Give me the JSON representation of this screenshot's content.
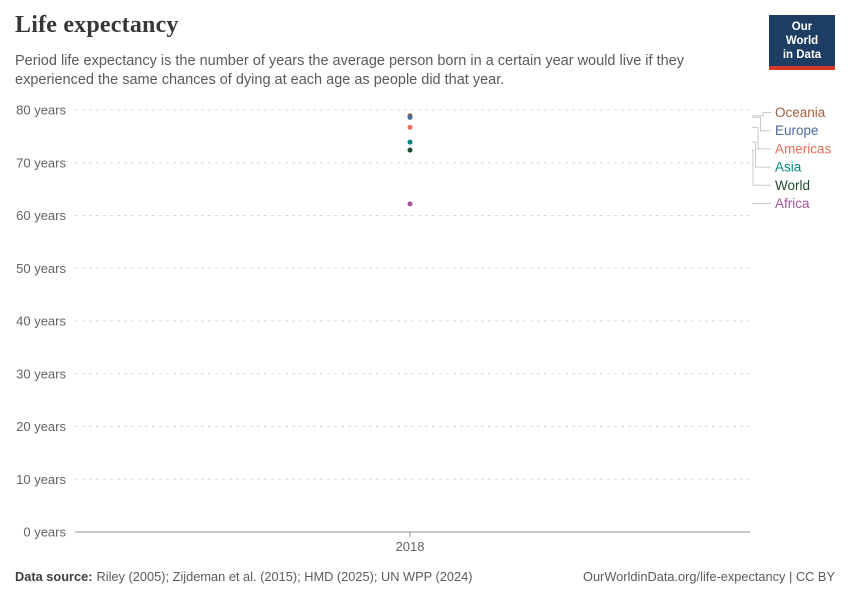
{
  "header": {
    "title": "Life expectancy",
    "subtitle": "Period life expectancy is the number of years the average person born in a certain year would live if they experienced the same chances of dying at each age as people did that year.",
    "logo": {
      "line1": "Our World",
      "line2": "in Data"
    }
  },
  "chart_data": {
    "type": "scatter",
    "title": "Life expectancy",
    "x": [
      2018
    ],
    "xtick_labels": [
      "2018"
    ],
    "series": [
      {
        "name": "Oceania",
        "color": "#a0603f",
        "values": [
          78.9
        ]
      },
      {
        "name": "Europe",
        "color": "#4c6a9c",
        "values": [
          78.6
        ]
      },
      {
        "name": "Americas",
        "color": "#e56e5a",
        "values": [
          76.7
        ]
      },
      {
        "name": "Asia",
        "color": "#00847e",
        "values": [
          73.9
        ]
      },
      {
        "name": "World",
        "color": "#1d4a2f",
        "values": [
          72.4
        ]
      },
      {
        "name": "Africa",
        "color": "#a2559c",
        "values": [
          62.2
        ]
      }
    ],
    "ylim": [
      0,
      80
    ],
    "yticks": [
      80,
      70,
      60,
      50,
      40,
      30,
      20,
      10,
      0
    ],
    "ytick_labels": [
      "80 years",
      "70 years",
      "60 years",
      "50 years",
      "40 years",
      "30 years",
      "20 years",
      "10 years",
      "0 years"
    ],
    "grid": "horizontal-dashed",
    "legend_position": "right"
  },
  "colors": {
    "logo_bg": "#1d3d63",
    "logo_accent": "#d7382d",
    "grid": "#dadada",
    "axis": "#8f8f8f",
    "leader_line": "#c9c9c9"
  },
  "footer": {
    "datasource_label": "Data source:",
    "datasource_text": "Riley (2005); Zijdeman et al. (2015); HMD (2025); UN WPP (2024)",
    "attribution": "OurWorldinData.org/life-expectancy | CC BY"
  }
}
